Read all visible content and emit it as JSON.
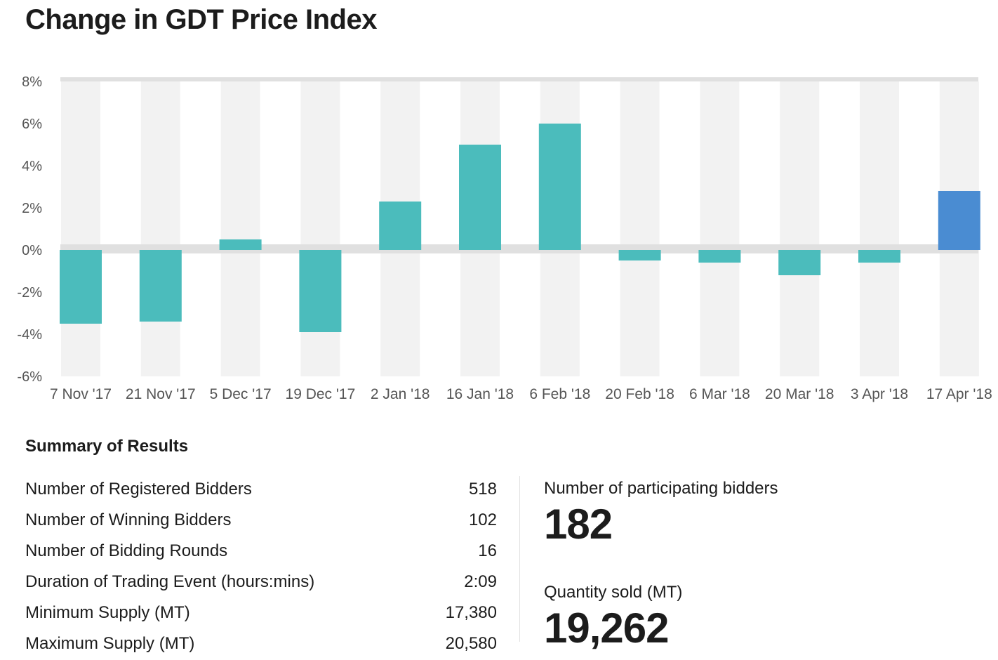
{
  "title": "Change in GDT Price Index",
  "chart_data": {
    "type": "bar",
    "title": "Change in GDT Price Index",
    "categories": [
      "7 Nov '17",
      "21 Nov '17",
      "5 Dec '17",
      "19 Dec '17",
      "2 Jan '18",
      "16 Jan '18",
      "6 Feb '18",
      "20 Feb '18",
      "6 Mar '18",
      "20 Mar '18",
      "3 Apr '18",
      "17 Apr '18"
    ],
    "values": [
      -3.5,
      -3.4,
      0.5,
      -3.9,
      2.3,
      5.0,
      6.0,
      -0.5,
      -0.6,
      -1.2,
      -0.6,
      2.8
    ],
    "yticks": [
      "8%",
      "6%",
      "4%",
      "2%",
      "0%",
      "-2%",
      "-4%",
      "-6%"
    ],
    "ylim": [
      -6,
      8
    ],
    "grid": false,
    "colors": {
      "bar": "#4bbcbc",
      "latest": "#4a8cd2",
      "band": "#f2f2f2",
      "zero_line": "#e0e0e0"
    }
  },
  "summary": {
    "title": "Summary of Results",
    "rows": [
      {
        "label": "Number of Registered Bidders",
        "value": "518"
      },
      {
        "label": "Number of Winning Bidders",
        "value": "102"
      },
      {
        "label": "Number of Bidding Rounds",
        "value": "16"
      },
      {
        "label": "Duration of Trading Event (hours:mins)",
        "value": "2:09"
      },
      {
        "label": "Minimum Supply (MT)",
        "value": "17,380"
      },
      {
        "label": "Maximum Supply (MT)",
        "value": "20,580"
      }
    ],
    "participating": {
      "label": "Number of participating bidders",
      "value": "182"
    },
    "quantity": {
      "label": "Quantity sold (MT)",
      "value": "19,262"
    }
  }
}
